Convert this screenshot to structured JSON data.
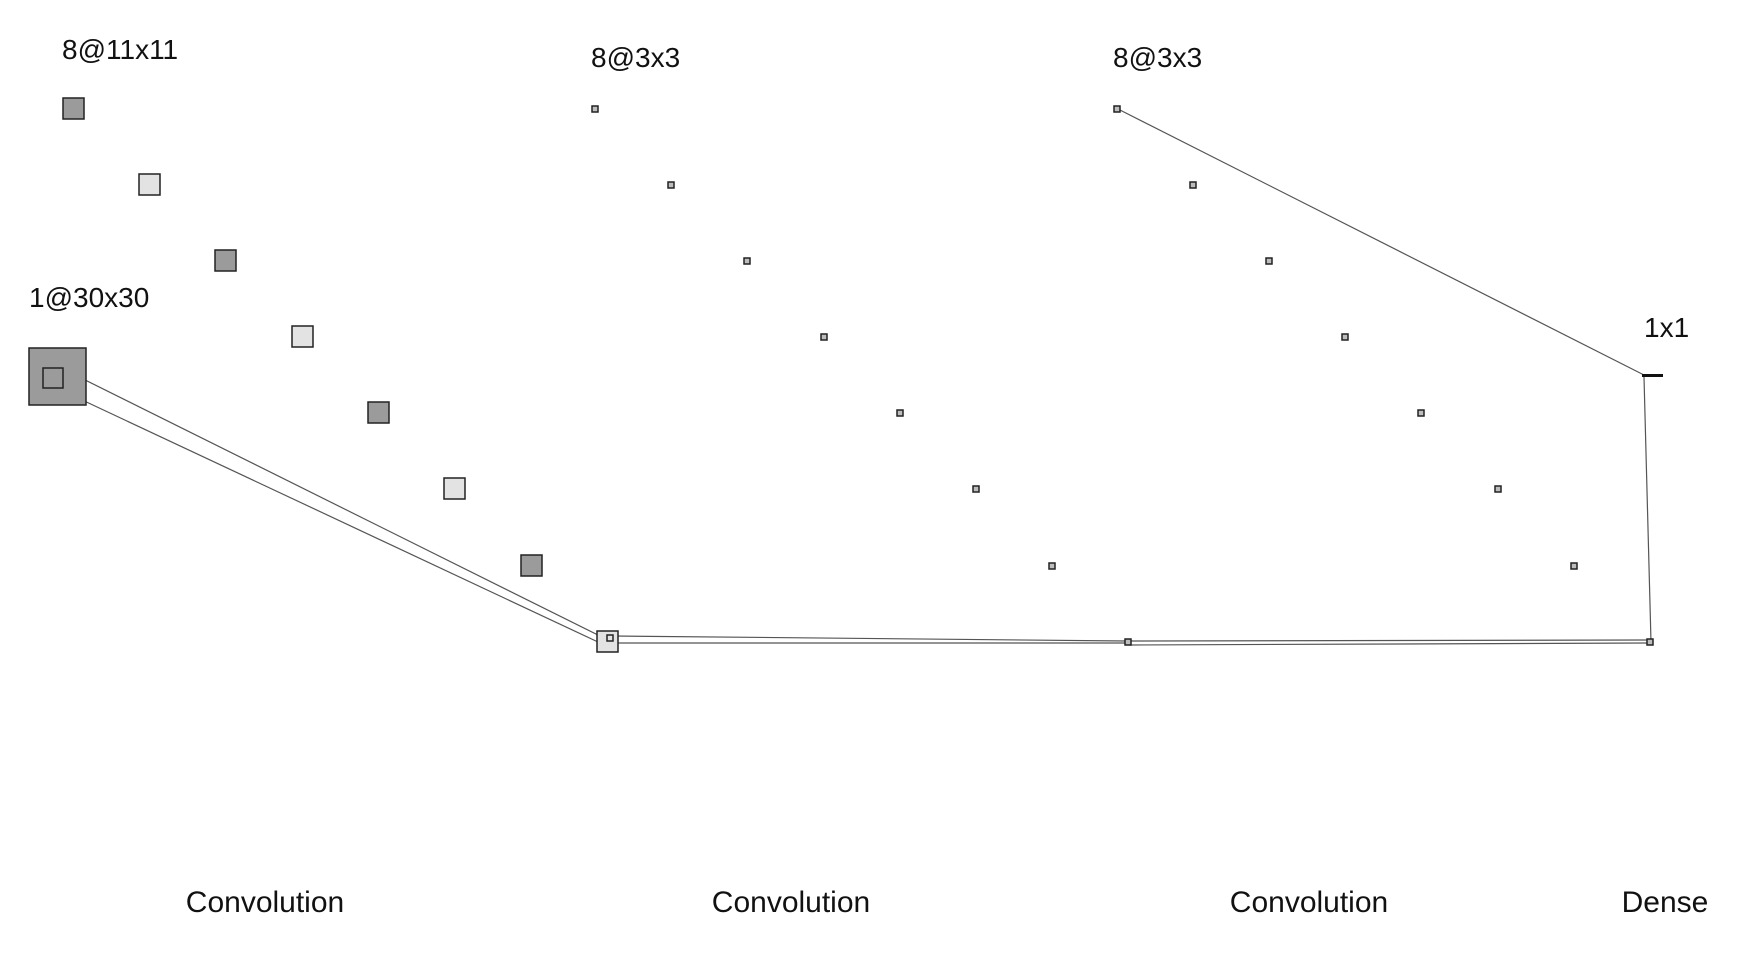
{
  "colors": {
    "dark_fill": "#9b9b9b",
    "light_fill": "#e3e3e3",
    "stroke": "#222222",
    "connector": "#555555"
  },
  "layers": [
    {
      "id": "input",
      "label": "1@30x30",
      "maps": 1
    },
    {
      "id": "conv1",
      "label": "8@11x11",
      "maps": 8
    },
    {
      "id": "conv2",
      "label": "8@3x3",
      "maps": 8
    },
    {
      "id": "conv3",
      "label": "8@3x3",
      "maps": 8
    },
    {
      "id": "dense",
      "label": "1x1",
      "maps": 1
    }
  ],
  "operations": [
    {
      "id": "op1",
      "label": "Convolution"
    },
    {
      "id": "op2",
      "label": "Convolution"
    },
    {
      "id": "op3",
      "label": "Convolution"
    },
    {
      "id": "op4",
      "label": "Dense"
    }
  ]
}
